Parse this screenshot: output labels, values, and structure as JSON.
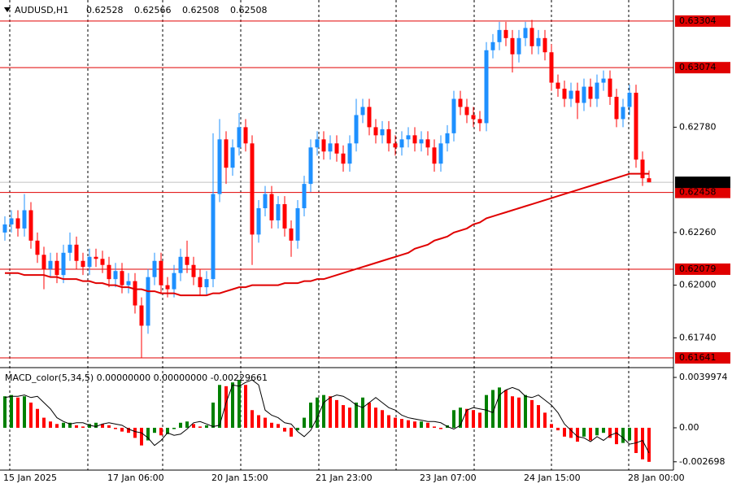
{
  "chart_data": [
    {
      "type": "candlestick",
      "symbol": "AUDUSD,H1",
      "categories": [
        "15 Jan 2025",
        null,
        null,
        null,
        null,
        null,
        null,
        null,
        null,
        null,
        null,
        null,
        null,
        null,
        null,
        null,
        "17 Jan 06:00",
        null,
        null,
        null,
        null,
        null,
        null,
        null,
        null,
        null,
        null,
        null,
        null,
        null,
        null,
        null,
        "20 Jan 15:00",
        null,
        null,
        null,
        null,
        null,
        null,
        null,
        null,
        null,
        null,
        null,
        null,
        null,
        null,
        null,
        "21 Jan 23:00",
        null,
        null,
        null,
        null,
        null,
        null,
        null,
        null,
        null,
        null,
        null,
        null,
        null,
        null,
        null,
        "23 Jan 07:00",
        null,
        null,
        null,
        null,
        null,
        null,
        null,
        null,
        null,
        null,
        null,
        null,
        null,
        null,
        null,
        "24 Jan 15:00",
        null,
        null,
        null,
        null,
        null,
        null,
        null,
        null,
        null,
        null,
        null,
        null,
        null,
        null,
        null,
        "28 Jan 00:00",
        null,
        null,
        null
      ],
      "open": [
        0.6226,
        0.623,
        0.6233,
        0.6228,
        0.6237,
        0.6222,
        0.6215,
        0.6208,
        0.6212,
        0.6205,
        0.6216,
        0.622,
        0.6212,
        0.6209,
        0.6214,
        0.6213,
        0.621,
        0.6203,
        0.6207,
        0.62,
        0.6202,
        0.619,
        0.618,
        0.6204,
        0.6212,
        0.62,
        0.6198,
        0.6206,
        0.6214,
        0.621,
        0.6204,
        0.6199,
        0.6203,
        0.6245,
        0.6272,
        0.6258,
        0.6268,
        0.6278,
        0.627,
        0.6225,
        0.6238,
        0.6245,
        0.6232,
        0.624,
        0.6228,
        0.6222,
        0.6238,
        0.625,
        0.6268,
        0.6272,
        0.6266,
        0.627,
        0.6265,
        0.626,
        0.627,
        0.6284,
        0.6288,
        0.6278,
        0.6274,
        0.6277,
        0.627,
        0.6268,
        0.6272,
        0.6274,
        0.627,
        0.6272,
        0.6268,
        0.626,
        0.627,
        0.6275,
        0.6292,
        0.6288,
        0.6284,
        0.6282,
        0.628,
        0.6316,
        0.632,
        0.6326,
        0.6322,
        0.6314,
        0.6322,
        0.6327,
        0.6318,
        0.6322,
        0.6315,
        0.63,
        0.6297,
        0.6292,
        0.6296,
        0.629,
        0.6298,
        0.6292,
        0.63,
        0.6302,
        0.6293,
        0.6282,
        0.6288,
        0.6295,
        0.6262,
        0.62528
      ],
      "high": [
        0.6234,
        0.6237,
        0.6237,
        0.6245,
        0.6241,
        0.6226,
        0.6219,
        0.6216,
        0.6216,
        0.622,
        0.6226,
        0.6224,
        0.6216,
        0.6218,
        0.6218,
        0.6217,
        0.6214,
        0.6211,
        0.6211,
        0.6206,
        0.6206,
        0.6194,
        0.6208,
        0.6216,
        0.6216,
        0.6204,
        0.621,
        0.6218,
        0.6222,
        0.6214,
        0.6208,
        0.6207,
        0.6275,
        0.6282,
        0.6276,
        0.6272,
        0.6285,
        0.6282,
        0.6274,
        0.6242,
        0.6249,
        0.6249,
        0.6244,
        0.6244,
        0.6232,
        0.6242,
        0.6254,
        0.6272,
        0.6276,
        0.6276,
        0.6274,
        0.6274,
        0.6269,
        0.6274,
        0.6292,
        0.6292,
        0.6292,
        0.6282,
        0.6281,
        0.6281,
        0.6274,
        0.6276,
        0.6278,
        0.6278,
        0.6276,
        0.6276,
        0.6272,
        0.6274,
        0.6279,
        0.6296,
        0.6296,
        0.6292,
        0.6288,
        0.6286,
        0.632,
        0.6324,
        0.633,
        0.633,
        0.6326,
        0.6326,
        0.633,
        0.6331,
        0.6326,
        0.6326,
        0.6319,
        0.6304,
        0.6301,
        0.63,
        0.63,
        0.6302,
        0.6302,
        0.6304,
        0.6306,
        0.6306,
        0.6297,
        0.6292,
        0.6299,
        0.6299,
        0.6266,
        0.62566
      ],
      "low": [
        0.6222,
        0.6226,
        0.6224,
        0.6224,
        0.6218,
        0.6211,
        0.6198,
        0.6204,
        0.6201,
        0.6201,
        0.6212,
        0.6208,
        0.6205,
        0.6205,
        0.6209,
        0.6206,
        0.6199,
        0.6199,
        0.6196,
        0.6196,
        0.6186,
        0.6164,
        0.6176,
        0.62,
        0.6196,
        0.6194,
        0.6194,
        0.6202,
        0.6206,
        0.62,
        0.6195,
        0.6195,
        0.6199,
        0.6241,
        0.625,
        0.6254,
        0.6264,
        0.6266,
        0.621,
        0.6221,
        0.6234,
        0.6228,
        0.6228,
        0.6224,
        0.6214,
        0.6218,
        0.6234,
        0.6246,
        0.6264,
        0.6262,
        0.6262,
        0.6261,
        0.6256,
        0.6256,
        0.6266,
        0.628,
        0.6274,
        0.627,
        0.627,
        0.6266,
        0.6264,
        0.6264,
        0.6268,
        0.6266,
        0.6266,
        0.6264,
        0.6256,
        0.6256,
        0.6266,
        0.6271,
        0.6284,
        0.628,
        0.6278,
        0.6276,
        0.6276,
        0.6312,
        0.6316,
        0.6318,
        0.6305,
        0.631,
        0.6318,
        0.6314,
        0.6314,
        0.6311,
        0.6296,
        0.6293,
        0.6288,
        0.6288,
        0.6282,
        0.6286,
        0.6288,
        0.6288,
        0.6296,
        0.6289,
        0.6278,
        0.6278,
        0.6284,
        0.6258,
        0.6249,
        0.62508
      ],
      "close": [
        0.623,
        0.6233,
        0.6228,
        0.6237,
        0.6222,
        0.6215,
        0.6208,
        0.6212,
        0.6205,
        0.6216,
        0.622,
        0.6212,
        0.6209,
        0.6214,
        0.6213,
        0.621,
        0.6203,
        0.6207,
        0.62,
        0.6202,
        0.619,
        0.618,
        0.6204,
        0.6212,
        0.62,
        0.6198,
        0.6206,
        0.6214,
        0.621,
        0.6204,
        0.6199,
        0.6203,
        0.6245,
        0.6272,
        0.6258,
        0.6268,
        0.6278,
        0.627,
        0.6225,
        0.6238,
        0.6245,
        0.6232,
        0.624,
        0.6228,
        0.6222,
        0.6238,
        0.625,
        0.6268,
        0.6272,
        0.6266,
        0.627,
        0.6265,
        0.626,
        0.627,
        0.6284,
        0.6288,
        0.6278,
        0.6274,
        0.6277,
        0.627,
        0.6268,
        0.6272,
        0.6274,
        0.627,
        0.6272,
        0.6268,
        0.626,
        0.627,
        0.6275,
        0.6292,
        0.6288,
        0.6284,
        0.6282,
        0.628,
        0.6316,
        0.632,
        0.6326,
        0.6322,
        0.6314,
        0.6322,
        0.6327,
        0.6318,
        0.6322,
        0.6315,
        0.63,
        0.6297,
        0.6292,
        0.6296,
        0.629,
        0.6298,
        0.6292,
        0.63,
        0.6302,
        0.6293,
        0.6282,
        0.6288,
        0.6295,
        0.6262,
        0.62528,
        0.62508
      ],
      "up_color": "#1e90ff",
      "down_color": "#ff0000",
      "ma": {
        "color": "#e00000",
        "values": [
          0.6206,
          0.6206,
          0.6206,
          0.6205,
          0.6205,
          0.6205,
          0.6205,
          0.6204,
          0.6204,
          0.6203,
          0.6203,
          0.6203,
          0.6202,
          0.6202,
          0.6201,
          0.6201,
          0.62,
          0.62,
          0.6199,
          0.6199,
          0.6198,
          0.6198,
          0.6197,
          0.6197,
          0.6196,
          0.6196,
          0.6196,
          0.6195,
          0.6195,
          0.6195,
          0.6195,
          0.6195,
          0.6196,
          0.6196,
          0.6197,
          0.6198,
          0.6199,
          0.6199,
          0.62,
          0.62,
          0.62,
          0.62,
          0.62,
          0.6201,
          0.6201,
          0.6201,
          0.6202,
          0.6202,
          0.6203,
          0.6203,
          0.6204,
          0.6205,
          0.6206,
          0.6207,
          0.6208,
          0.6209,
          0.621,
          0.6211,
          0.6212,
          0.6213,
          0.6214,
          0.6215,
          0.6216,
          0.6218,
          0.6219,
          0.622,
          0.6222,
          0.6223,
          0.6224,
          0.6226,
          0.6227,
          0.6228,
          0.623,
          0.6231,
          0.6233,
          0.6234,
          0.6235,
          0.6236,
          0.6237,
          0.6238,
          0.6239,
          0.624,
          0.6241,
          0.6242,
          0.6243,
          0.6244,
          0.6245,
          0.6246,
          0.6247,
          0.6248,
          0.6249,
          0.625,
          0.6251,
          0.6252,
          0.6253,
          0.6254,
          0.6255,
          0.6255,
          0.6255,
          0.6255
        ]
      },
      "ylim": [
        0.61601,
        0.63408
      ],
      "yticks": [
        {
          "value": 0.6278,
          "label": "0.62780"
        },
        {
          "value": 0.6226,
          "label": "0.62260"
        },
        {
          "value": 0.62,
          "label": "0.62000"
        },
        {
          "value": 0.6174,
          "label": "0.61740"
        }
      ],
      "levels": [
        {
          "value": 0.63304,
          "label": "0.63304"
        },
        {
          "value": 0.63074,
          "label": "0.63074"
        },
        {
          "value": 0.62458,
          "label": "0.62458"
        },
        {
          "value": 0.62079,
          "label": "0.62079"
        },
        {
          "value": 0.61641,
          "label": "0.61641"
        }
      ],
      "level_color": "#e00000"
    },
    {
      "type": "macd",
      "title": "MACD_color(5,34,5) 0.00000000 0.00000000 -0.00229661",
      "values": [
        0.0025,
        0.0026,
        0.0024,
        0.0025,
        0.002,
        0.0015,
        0.0008,
        0.0005,
        0.0003,
        0.0004,
        0.0004,
        0.0002,
        0.0001,
        0.0003,
        0.0004,
        0.0003,
        0.0002,
        -0.0001,
        -0.0003,
        -0.0004,
        -0.0008,
        -0.0014,
        -0.001,
        -0.0004,
        -0.0006,
        -0.0005,
        -0.0001,
        0.0004,
        0.0005,
        0.0003,
        0.0001,
        0.0002,
        0.002,
        0.0034,
        0.0033,
        0.0036,
        0.0038,
        0.0034,
        0.0014,
        0.001,
        0.0008,
        0.0004,
        0.0003,
        -0.0003,
        -0.0007,
        -0.0002,
        0.0008,
        0.002,
        0.0024,
        0.0026,
        0.0025,
        0.0022,
        0.0018,
        0.0016,
        0.002,
        0.0024,
        0.002,
        0.0016,
        0.0014,
        0.001,
        0.0008,
        0.0007,
        0.0006,
        0.0005,
        0.0005,
        0.0004,
        0.0001,
        -0.0001,
        0.0002,
        0.0014,
        0.0016,
        0.0015,
        0.0014,
        0.0012,
        0.0026,
        0.003,
        0.0032,
        0.003,
        0.0025,
        0.0024,
        0.0026,
        0.0022,
        0.0018,
        0.0012,
        0.0003,
        -0.0002,
        -0.0007,
        -0.0008,
        -0.0011,
        -0.0007,
        -0.001,
        -0.0006,
        -0.0004,
        -0.0008,
        -0.0013,
        -0.0012,
        -0.001,
        -0.002,
        -0.0025,
        -0.0027
      ],
      "signal": [
        0.0024,
        0.0025,
        0.0025,
        0.0026,
        0.0024,
        0.0025,
        0.002,
        0.0015,
        0.0008,
        0.0005,
        0.0003,
        0.0004,
        0.0004,
        0.0002,
        0.0001,
        0.0003,
        0.0004,
        0.0003,
        0.0002,
        -0.0001,
        -0.0003,
        -0.0004,
        -0.0008,
        -0.0014,
        -0.001,
        -0.0004,
        -0.0006,
        -0.0005,
        -0.0001,
        0.0004,
        0.0005,
        0.0003,
        0.0001,
        0.0002,
        0.002,
        0.0034,
        0.0033,
        0.0036,
        0.0038,
        0.0034,
        0.0014,
        0.001,
        0.0008,
        0.0004,
        0.0003,
        -0.0003,
        -0.0007,
        -0.0002,
        0.0008,
        0.002,
        0.0024,
        0.0026,
        0.0025,
        0.0022,
        0.0018,
        0.0016,
        0.002,
        0.0024,
        0.002,
        0.0016,
        0.0014,
        0.001,
        0.0008,
        0.0007,
        0.0006,
        0.0005,
        0.0005,
        0.0004,
        0.0001,
        -0.0001,
        0.0002,
        0.0014,
        0.0016,
        0.0015,
        0.0014,
        0.0012,
        0.0026,
        0.003,
        0.0032,
        0.003,
        0.0025,
        0.0024,
        0.0026,
        0.0022,
        0.0018,
        0.0012,
        0.0003,
        -0.0002,
        -0.0007,
        -0.0008,
        -0.0011,
        -0.0007,
        -0.001,
        -0.0006,
        -0.0004,
        -0.0008,
        -0.0013,
        -0.0012,
        -0.001,
        -0.002
      ],
      "rising_color": "#008000",
      "falling_color": "#ff0000",
      "signal_color": "#000000",
      "ylim": [
        -0.00297,
        0.00458
      ],
      "yticks": [
        {
          "value": 0.0039974,
          "label": "0.0039974"
        },
        {
          "value": 0,
          "label": "0.00"
        },
        {
          "value": -0.002698,
          "label": "-0.002698"
        }
      ]
    }
  ]
}
